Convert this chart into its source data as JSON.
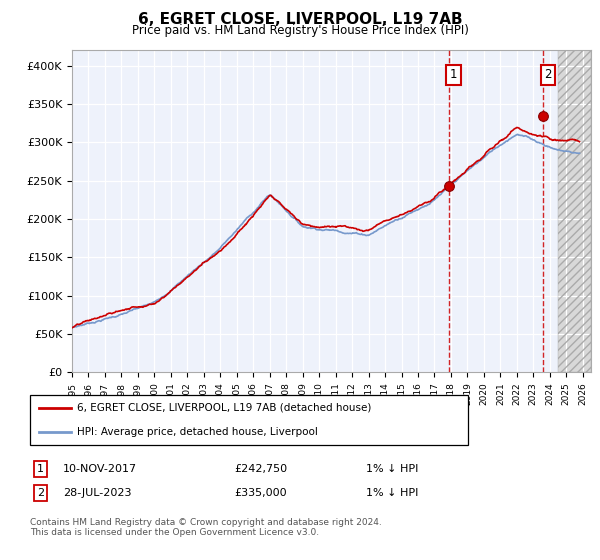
{
  "title": "6, EGRET CLOSE, LIVERPOOL, L19 7AB",
  "subtitle": "Price paid vs. HM Land Registry's House Price Index (HPI)",
  "ylim": [
    0,
    420000
  ],
  "xlim_start": 1995.0,
  "xlim_end": 2026.5,
  "yticks": [
    0,
    50000,
    100000,
    150000,
    200000,
    250000,
    300000,
    350000,
    400000
  ],
  "ytick_labels": [
    "£0",
    "£50K",
    "£100K",
    "£150K",
    "£200K",
    "£250K",
    "£300K",
    "£350K",
    "£400K"
  ],
  "xtick_years": [
    1995,
    1996,
    1997,
    1998,
    1999,
    2000,
    2001,
    2002,
    2003,
    2004,
    2005,
    2006,
    2007,
    2008,
    2009,
    2010,
    2011,
    2012,
    2013,
    2014,
    2015,
    2016,
    2017,
    2018,
    2019,
    2020,
    2021,
    2022,
    2023,
    2024,
    2025,
    2026
  ],
  "sale1_x": 2017.86,
  "sale1_y": 242750,
  "sale2_x": 2023.58,
  "sale2_y": 335000,
  "hpi_color": "#7799cc",
  "price_color": "#cc0000",
  "bg_chart": "#eef2fb",
  "future_start": 2024.5,
  "legend_label1": "6, EGRET CLOSE, LIVERPOOL, L19 7AB (detached house)",
  "legend_label2": "HPI: Average price, detached house, Liverpool",
  "note1_date": "10-NOV-2017",
  "note1_price": "£242,750",
  "note1_hpi": "1% ↓ HPI",
  "note2_date": "28-JUL-2023",
  "note2_price": "£335,000",
  "note2_hpi": "1% ↓ HPI",
  "footer": "Contains HM Land Registry data © Crown copyright and database right 2024.\nThis data is licensed under the Open Government Licence v3.0."
}
